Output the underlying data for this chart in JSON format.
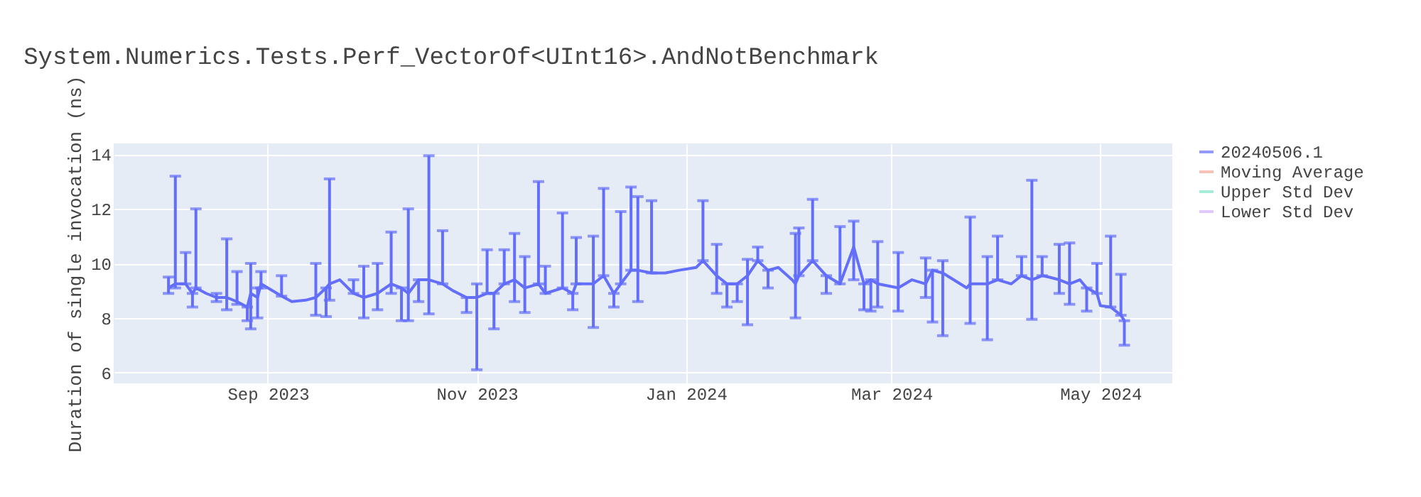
{
  "chart_data": {
    "type": "line",
    "title": "System.Numerics.Tests.Perf_VectorOf<UInt16>.AndNotBenchmark",
    "ylabel": "Duration of single invocation (ns)",
    "xlim": [
      "2023-07-18",
      "2024-05-22"
    ],
    "xticks": [
      {
        "value": "2023-09-01",
        "label": "Sep 2023"
      },
      {
        "value": "2023-11-01",
        "label": "Nov 2023"
      },
      {
        "value": "2024-01-01",
        "label": "Jan 2024"
      },
      {
        "value": "2024-03-01",
        "label": "Mar 2024"
      },
      {
        "value": "2024-05-01",
        "label": "May 2024"
      }
    ],
    "ylim": [
      5.6,
      14.4
    ],
    "yticks": [
      6,
      8,
      10,
      12,
      14
    ],
    "grid": true,
    "legend": "top right",
    "marker": "none",
    "line_style": "solid",
    "series": [
      {
        "name": "20240506.1",
        "color": "#636efa",
        "x": [
          "2023-08-03",
          "2023-08-05",
          "2023-08-08",
          "2023-08-10",
          "2023-08-11",
          "2023-08-14",
          "2023-08-17",
          "2023-08-20",
          "2023-08-23",
          "2023-08-26",
          "2023-08-27",
          "2023-08-29",
          "2023-08-30",
          "2023-09-05",
          "2023-09-08",
          "2023-09-12",
          "2023-09-15",
          "2023-09-18",
          "2023-09-19",
          "2023-09-22",
          "2023-09-26",
          "2023-09-29",
          "2023-10-03",
          "2023-10-07",
          "2023-10-10",
          "2023-10-12",
          "2023-10-15",
          "2023-10-18",
          "2023-10-22",
          "2023-10-25",
          "2023-10-29",
          "2023-11-01",
          "2023-11-04",
          "2023-11-06",
          "2023-11-09",
          "2023-11-12",
          "2023-11-15",
          "2023-11-19",
          "2023-11-21",
          "2023-11-26",
          "2023-11-29",
          "2023-11-30",
          "2023-12-05",
          "2023-12-08",
          "2023-12-11",
          "2023-12-13",
          "2023-12-16",
          "2023-12-18",
          "2023-12-22",
          "2023-12-26",
          "2023-12-30",
          "2024-01-04",
          "2024-01-06",
          "2024-01-10",
          "2024-01-13",
          "2024-01-16",
          "2024-01-19",
          "2024-01-22",
          "2024-01-25",
          "2024-01-28",
          "2024-02-01",
          "2024-02-02",
          "2024-02-03",
          "2024-02-07",
          "2024-02-11",
          "2024-02-15",
          "2024-02-19",
          "2024-02-22",
          "2024-02-24",
          "2024-02-26",
          "2024-03-03",
          "2024-03-07",
          "2024-03-11",
          "2024-03-13",
          "2024-03-16",
          "2024-03-23",
          "2024-03-24",
          "2024-03-29",
          "2024-04-01",
          "2024-04-05",
          "2024-04-08",
          "2024-04-11",
          "2024-04-14",
          "2024-04-16",
          "2024-04-19",
          "2024-04-22",
          "2024-04-25",
          "2024-04-27",
          "2024-04-30",
          "2024-05-01",
          "2024-05-04",
          "2024-05-06",
          "2024-05-07",
          "2024-05-08"
        ],
        "values": [
          9.1,
          9.25,
          9.25,
          8.9,
          9.1,
          8.9,
          8.75,
          8.75,
          8.6,
          8.4,
          8.9,
          8.75,
          9.25,
          8.8,
          8.6,
          8.65,
          8.75,
          9.1,
          9.25,
          9.4,
          8.9,
          8.75,
          8.9,
          9.25,
          9.1,
          8.9,
          9.4,
          9.4,
          9.25,
          9.0,
          8.75,
          8.75,
          8.9,
          8.9,
          9.25,
          9.4,
          9.1,
          9.25,
          8.9,
          9.1,
          8.9,
          9.25,
          9.25,
          9.55,
          8.9,
          9.25,
          9.75,
          9.75,
          9.65,
          9.65,
          9.75,
          9.85,
          10.1,
          9.55,
          9.25,
          9.25,
          9.55,
          10.1,
          9.75,
          9.85,
          9.4,
          9.25,
          9.55,
          10.1,
          9.55,
          9.25,
          10.6,
          9.25,
          9.4,
          9.25,
          9.1,
          9.4,
          9.25,
          9.75,
          9.65,
          9.1,
          9.25,
          9.25,
          9.4,
          9.25,
          9.55,
          9.4,
          9.55,
          9.5,
          9.4,
          9.25,
          9.4,
          9.1,
          8.9,
          8.45,
          8.4,
          8.2,
          8.1,
          7.9
        ],
        "errors": [
          [
            8.9,
            9.5
          ],
          [
            9.1,
            13.2
          ],
          [
            9.25,
            10.4
          ],
          [
            8.4,
            8.9
          ],
          [
            9.1,
            12.0
          ],
          null,
          [
            8.6,
            8.9
          ],
          [
            8.3,
            10.9
          ],
          [
            8.5,
            9.7
          ],
          [
            7.9,
            8.4
          ],
          [
            7.6,
            10.0
          ],
          [
            8.0,
            9.1
          ],
          [
            9.1,
            9.7
          ],
          [
            8.8,
            9.55
          ],
          null,
          null,
          [
            8.1,
            10.0
          ],
          [
            8.05,
            9.1
          ],
          [
            8.65,
            13.1
          ],
          null,
          [
            8.9,
            9.4
          ],
          [
            8.0,
            9.9
          ],
          [
            8.3,
            10.0
          ],
          [
            8.9,
            11.15
          ],
          [
            7.9,
            9.1
          ],
          [
            7.9,
            12.0
          ],
          [
            8.6,
            9.4
          ],
          [
            8.15,
            13.95
          ],
          [
            9.25,
            11.2
          ],
          null,
          [
            8.2,
            8.75
          ],
          [
            6.1,
            9.25
          ],
          [
            8.9,
            10.5
          ],
          [
            7.6,
            8.9
          ],
          [
            9.25,
            10.5
          ],
          [
            8.6,
            11.1
          ],
          [
            8.2,
            10.25
          ],
          [
            9.25,
            13.0
          ],
          [
            8.9,
            9.9
          ],
          [
            9.1,
            11.85
          ],
          [
            8.3,
            8.9
          ],
          [
            9.25,
            10.95
          ],
          [
            7.65,
            11.0
          ],
          [
            9.55,
            12.75
          ],
          [
            8.4,
            8.9
          ],
          [
            9.25,
            11.9
          ],
          [
            9.75,
            12.8
          ],
          [
            8.6,
            12.45
          ],
          [
            9.65,
            12.3
          ],
          null,
          null,
          null,
          [
            10.1,
            12.3
          ],
          [
            8.9,
            10.7
          ],
          [
            8.4,
            9.25
          ],
          [
            8.6,
            9.25
          ],
          [
            7.75,
            10.15
          ],
          [
            10.1,
            10.6
          ],
          [
            9.1,
            9.75
          ],
          null,
          null,
          [
            8.0,
            11.1
          ],
          [
            9.55,
            11.3
          ],
          [
            10.1,
            12.35
          ],
          [
            8.9,
            9.55
          ],
          [
            9.25,
            11.35
          ],
          [
            9.4,
            11.55
          ],
          [
            8.3,
            9.25
          ],
          [
            8.25,
            9.4
          ],
          [
            8.4,
            10.8
          ],
          [
            8.25,
            10.4
          ],
          null,
          [
            8.75,
            10.2
          ],
          [
            7.85,
            9.75
          ],
          [
            7.35,
            10.1
          ],
          null,
          [
            7.8,
            11.7
          ],
          [
            7.2,
            10.25
          ],
          [
            9.4,
            11.0
          ],
          null,
          [
            9.55,
            10.25
          ],
          [
            7.95,
            13.05
          ],
          [
            9.55,
            10.25
          ],
          null,
          [
            8.9,
            10.7
          ],
          [
            8.5,
            10.75
          ],
          null,
          [
            8.25,
            9.1
          ],
          [
            8.9,
            10.0
          ],
          null,
          [
            8.4,
            11.0
          ],
          null,
          [
            8.1,
            9.6
          ],
          [
            7.0,
            7.9
          ]
        ]
      },
      {
        "name": "Moving Average",
        "color": "#f4a89a"
      },
      {
        "name": "Upper Std Dev",
        "color": "#7fe5ca"
      },
      {
        "name": "Lower Std Dev",
        "color": "#d4b0fc"
      }
    ]
  }
}
